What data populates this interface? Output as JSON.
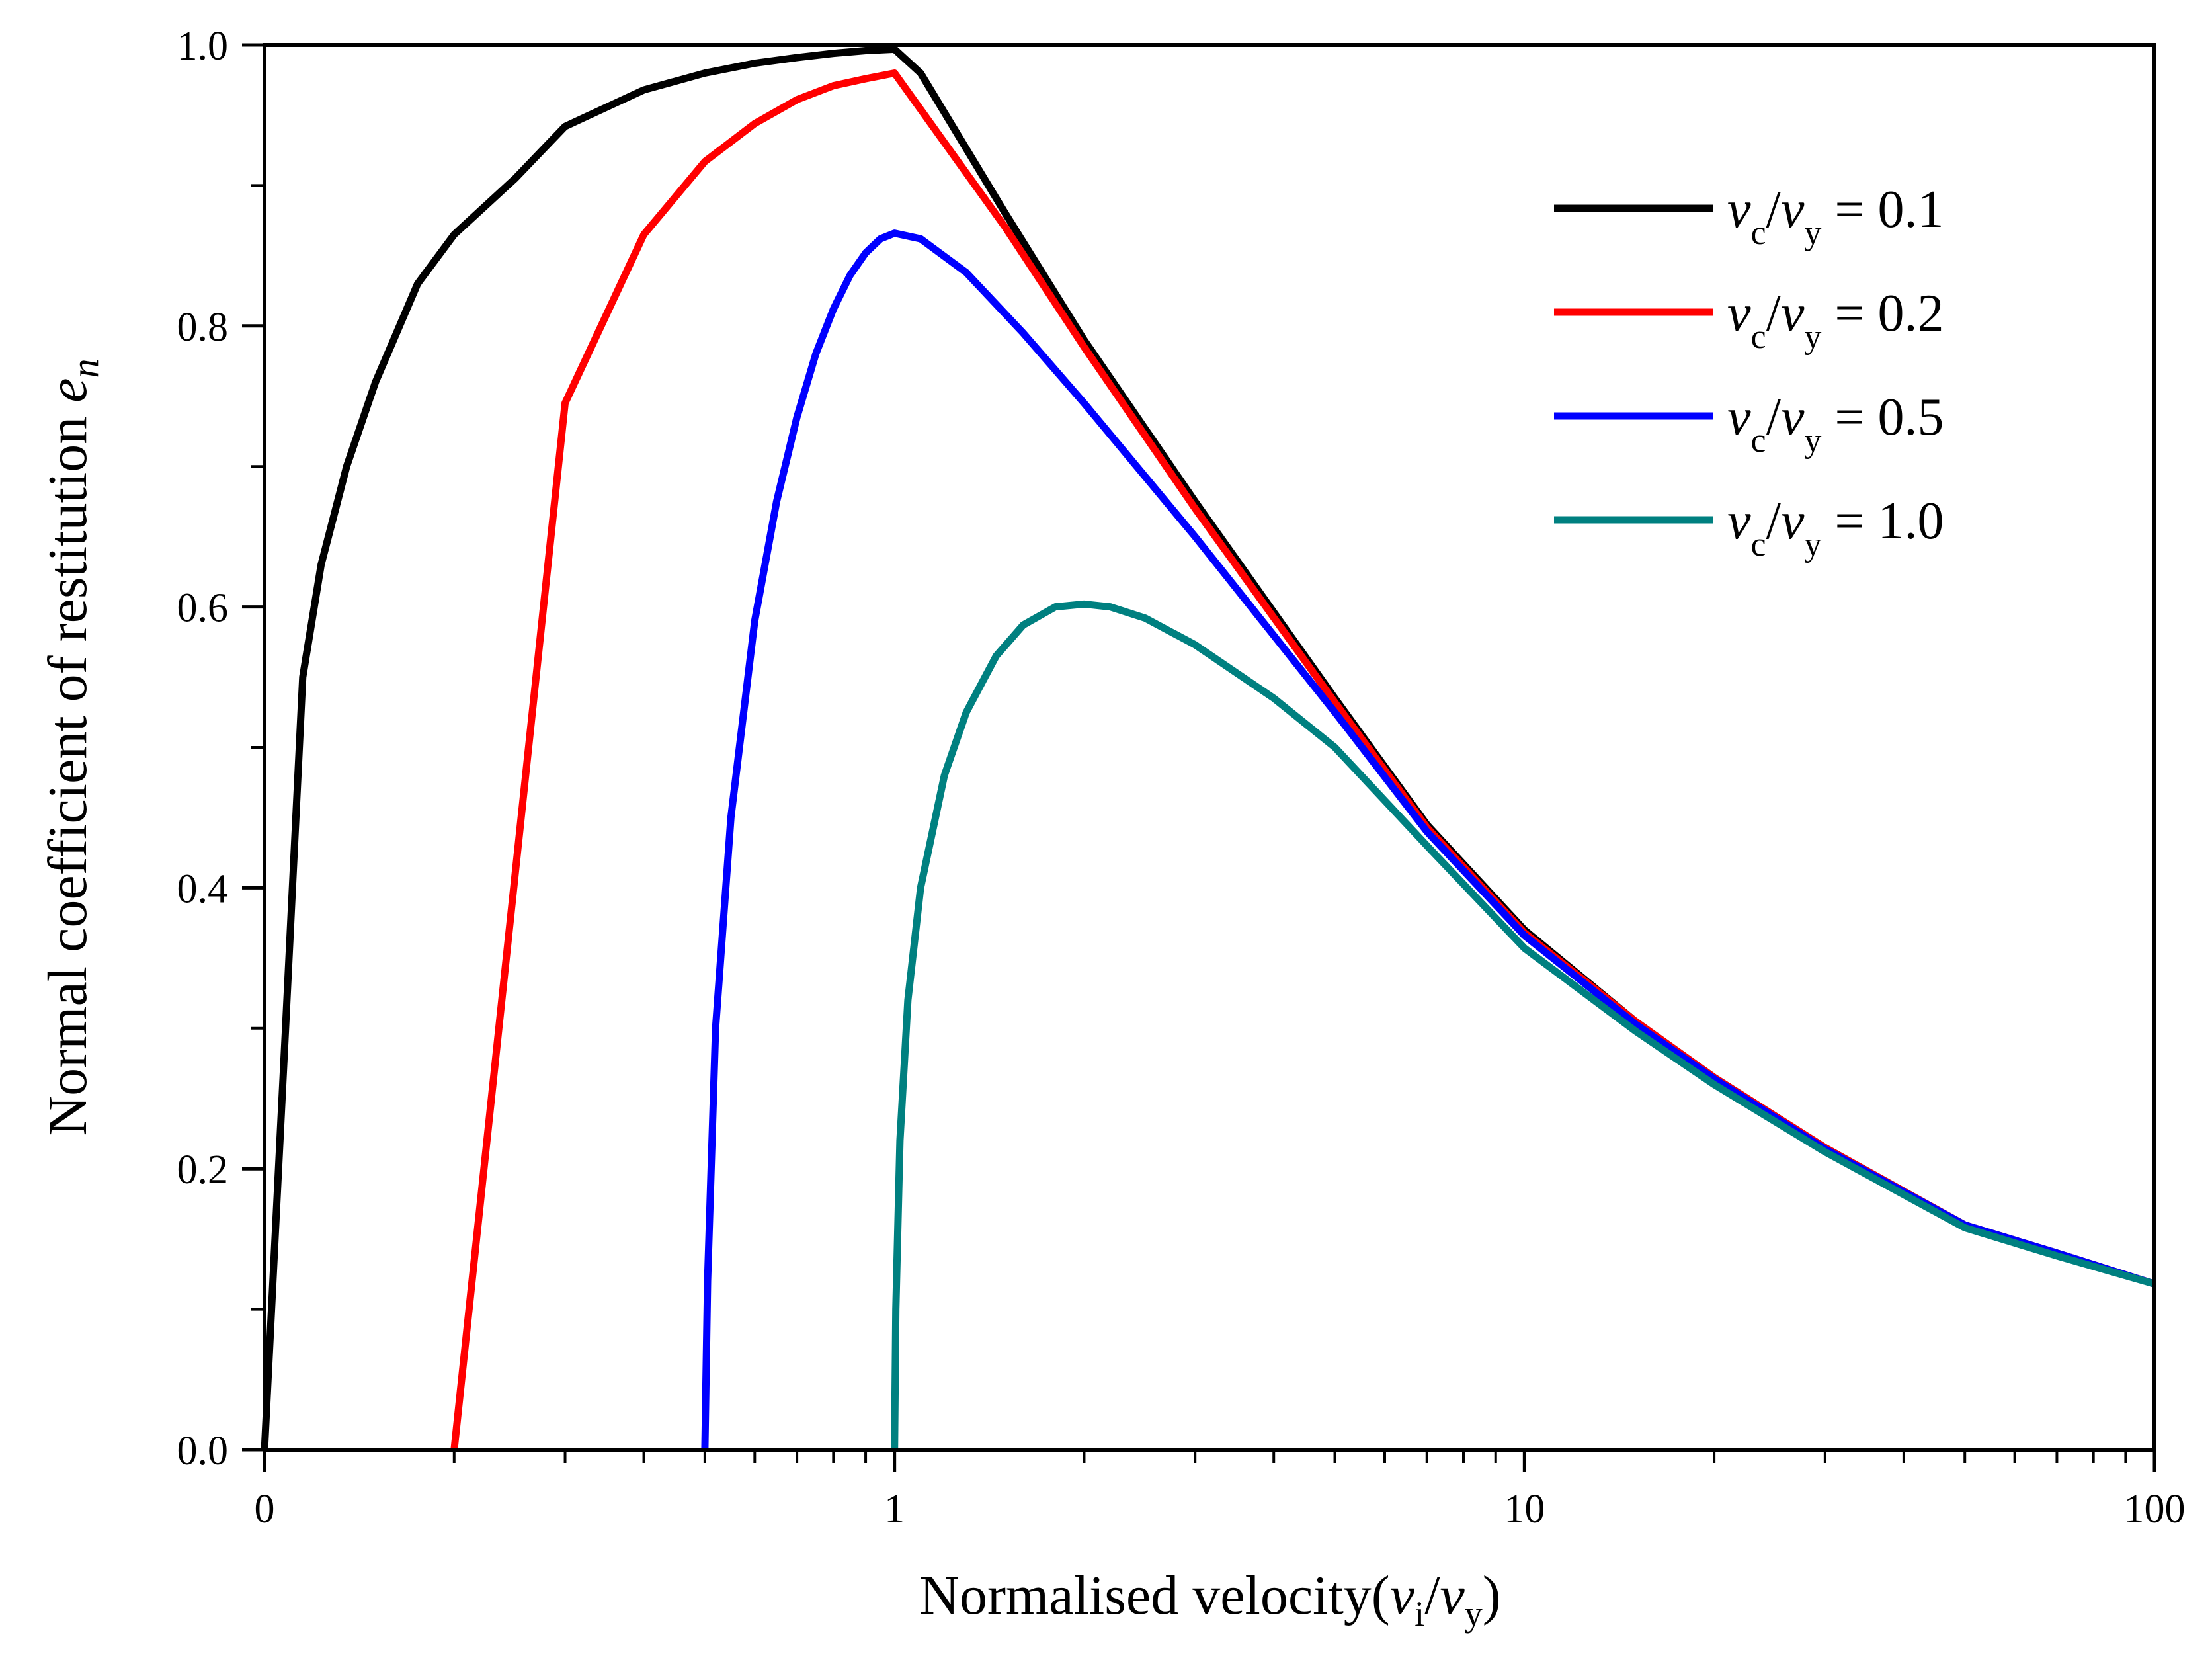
{
  "chart_data": {
    "type": "line",
    "title": "",
    "xlabel": "Normalised velocity(v_i/v_y)",
    "xlabel_parts": {
      "prefix": "Normalised velocity(",
      "v": "v",
      "sub_i": "i",
      "slash": "/",
      "sub_y": "y",
      "suffix": ")"
    },
    "ylabel": "Normal coefficient of restitution e_n",
    "ylabel_parts": {
      "prefix": "Normal coefficient of restitution ",
      "e": "e",
      "sub": "n"
    },
    "x_scale": "log (0 drawn at 0.1 position)",
    "xlim": [
      0.1,
      100
    ],
    "ylim": [
      0.0,
      1.0
    ],
    "x_ticks": [
      {
        "value": 0.1,
        "label": "0"
      },
      {
        "value": 1,
        "label": "1"
      },
      {
        "value": 10,
        "label": "10"
      },
      {
        "value": 100,
        "label": "100"
      }
    ],
    "y_ticks": [
      {
        "value": 0.0,
        "label": "0.0"
      },
      {
        "value": 0.2,
        "label": "0.2"
      },
      {
        "value": 0.4,
        "label": "0.4"
      },
      {
        "value": 0.6,
        "label": "0.6"
      },
      {
        "value": 0.8,
        "label": "0.8"
      },
      {
        "value": 1.0,
        "label": "1.0"
      }
    ],
    "legend_position": "top-right",
    "series": [
      {
        "name": "v_c/v_y = 0.1",
        "label_value": "= 0.1",
        "color": "#000000",
        "x": [
          0.1,
          0.108,
          0.115,
          0.123,
          0.135,
          0.15,
          0.175,
          0.2,
          0.25,
          0.3,
          0.4,
          0.5,
          0.6,
          0.7,
          0.8,
          0.9,
          1.0,
          1.1,
          1.5,
          2,
          3,
          5,
          7,
          10,
          15,
          20,
          30,
          50,
          70,
          100
        ],
        "y": [
          0.0,
          0.3,
          0.55,
          0.63,
          0.7,
          0.76,
          0.83,
          0.865,
          0.905,
          0.942,
          0.968,
          0.98,
          0.987,
          0.991,
          0.994,
          0.996,
          0.997,
          0.98,
          0.88,
          0.79,
          0.675,
          0.535,
          0.445,
          0.37,
          0.305,
          0.265,
          0.215,
          0.16,
          0.14,
          0.118
        ]
      },
      {
        "name": "v_c/v_y = 0.2",
        "label_value": "= 0.2",
        "color": "#ff0000",
        "x": [
          0.2,
          0.3,
          0.4,
          0.5,
          0.6,
          0.7,
          0.8,
          0.9,
          1.0,
          1.5,
          2,
          3,
          5,
          7,
          10,
          15,
          20,
          30,
          50,
          70,
          100
        ],
        "y": [
          0.0,
          0.745,
          0.865,
          0.917,
          0.944,
          0.961,
          0.971,
          0.976,
          0.98,
          0.87,
          0.785,
          0.67,
          0.532,
          0.443,
          0.368,
          0.305,
          0.265,
          0.215,
          0.16,
          0.14,
          0.118
        ]
      },
      {
        "name": "v_c/v_y = 0.5",
        "label_value": "= 0.5",
        "color": "#0000ff",
        "x": [
          0.5,
          0.505,
          0.52,
          0.55,
          0.6,
          0.65,
          0.7,
          0.75,
          0.8,
          0.85,
          0.9,
          0.95,
          1.0,
          1.1,
          1.3,
          1.6,
          2,
          3,
          5,
          7,
          10,
          15,
          20,
          30,
          50,
          70,
          100
        ],
        "y": [
          0.0,
          0.12,
          0.3,
          0.45,
          0.59,
          0.675,
          0.735,
          0.78,
          0.812,
          0.836,
          0.852,
          0.862,
          0.866,
          0.862,
          0.838,
          0.795,
          0.745,
          0.65,
          0.525,
          0.44,
          0.366,
          0.303,
          0.264,
          0.214,
          0.16,
          0.14,
          0.118
        ]
      },
      {
        "name": "v_c/v_y = 1.0",
        "label_value": "= 1.0",
        "color": "#008080",
        "x": [
          1.0,
          1.005,
          1.02,
          1.05,
          1.1,
          1.2,
          1.3,
          1.45,
          1.6,
          1.8,
          2.0,
          2.2,
          2.5,
          3,
          4,
          5,
          7,
          10,
          15,
          20,
          30,
          50,
          70,
          100
        ],
        "y": [
          0.0,
          0.1,
          0.22,
          0.32,
          0.4,
          0.48,
          0.525,
          0.565,
          0.587,
          0.6,
          0.602,
          0.6,
          0.592,
          0.573,
          0.535,
          0.5,
          0.43,
          0.357,
          0.298,
          0.26,
          0.212,
          0.158,
          0.138,
          0.118
        ]
      }
    ],
    "legend_label_parts": {
      "v": "v",
      "sub_c": "c",
      "slash": "/",
      "sub_y": "y"
    }
  }
}
